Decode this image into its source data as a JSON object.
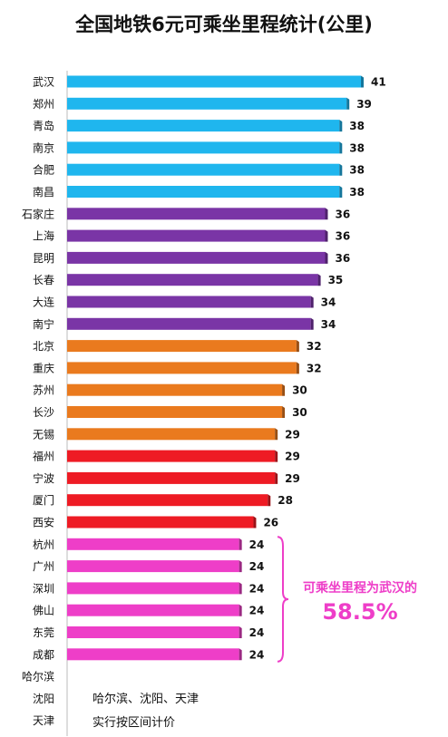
{
  "chart_data": {
    "type": "bar",
    "orientation": "horizontal",
    "title": "全国地铁6元可乘坐里程统计(公里)",
    "categories": [
      "武汉",
      "郑州",
      "青岛",
      "南京",
      "合肥",
      "南昌",
      "石家庄",
      "上海",
      "昆明",
      "长春",
      "大连",
      "南宁",
      "北京",
      "重庆",
      "苏州",
      "长沙",
      "无锡",
      "福州",
      "宁波",
      "厦门",
      "西安",
      "杭州",
      "广州",
      "深圳",
      "佛山",
      "东莞",
      "成都",
      "哈尔滨",
      "沈阳",
      "天津"
    ],
    "values": [
      41,
      39,
      38,
      38,
      38,
      38,
      36,
      36,
      36,
      35,
      34,
      34,
      32,
      32,
      30,
      30,
      29,
      29,
      29,
      28,
      26,
      24,
      24,
      24,
      24,
      24,
      24,
      null,
      null,
      null
    ],
    "value_labels": [
      "41",
      "39",
      "38",
      "38",
      "38",
      "38",
      "36",
      "36",
      "36",
      "35",
      "34",
      "34",
      "32",
      "32",
      "30",
      "30",
      "29",
      "29",
      "29",
      "28",
      "26",
      "24",
      "24",
      "24",
      "24",
      "24",
      "24",
      "",
      "",
      ""
    ],
    "colors": [
      "#1fb6ee",
      "#1fb6ee",
      "#1fb6ee",
      "#1fb6ee",
      "#1fb6ee",
      "#1fb6ee",
      "#7a35a6",
      "#7a35a6",
      "#7a35a6",
      "#7a35a6",
      "#7a35a6",
      "#7a35a6",
      "#ea7a1e",
      "#ea7a1e",
      "#ea7a1e",
      "#ea7a1e",
      "#ea7a1e",
      "#ee1b24",
      "#ee1b24",
      "#ee1b24",
      "#ee1b24",
      "#ee3ec8",
      "#ee3ec8",
      "#ee3ec8",
      "#ee3ec8",
      "#ee3ec8",
      "#ee3ec8",
      "",
      "",
      ""
    ],
    "xlim": [
      0,
      41
    ],
    "grid": false,
    "legend": "none",
    "annotation": {
      "label": "可乘坐里程为武汉的",
      "value": "58.5%",
      "color": "#ee3ec8"
    },
    "note": [
      "哈尔滨、沈阳、天津",
      "实行按区间计价"
    ]
  }
}
